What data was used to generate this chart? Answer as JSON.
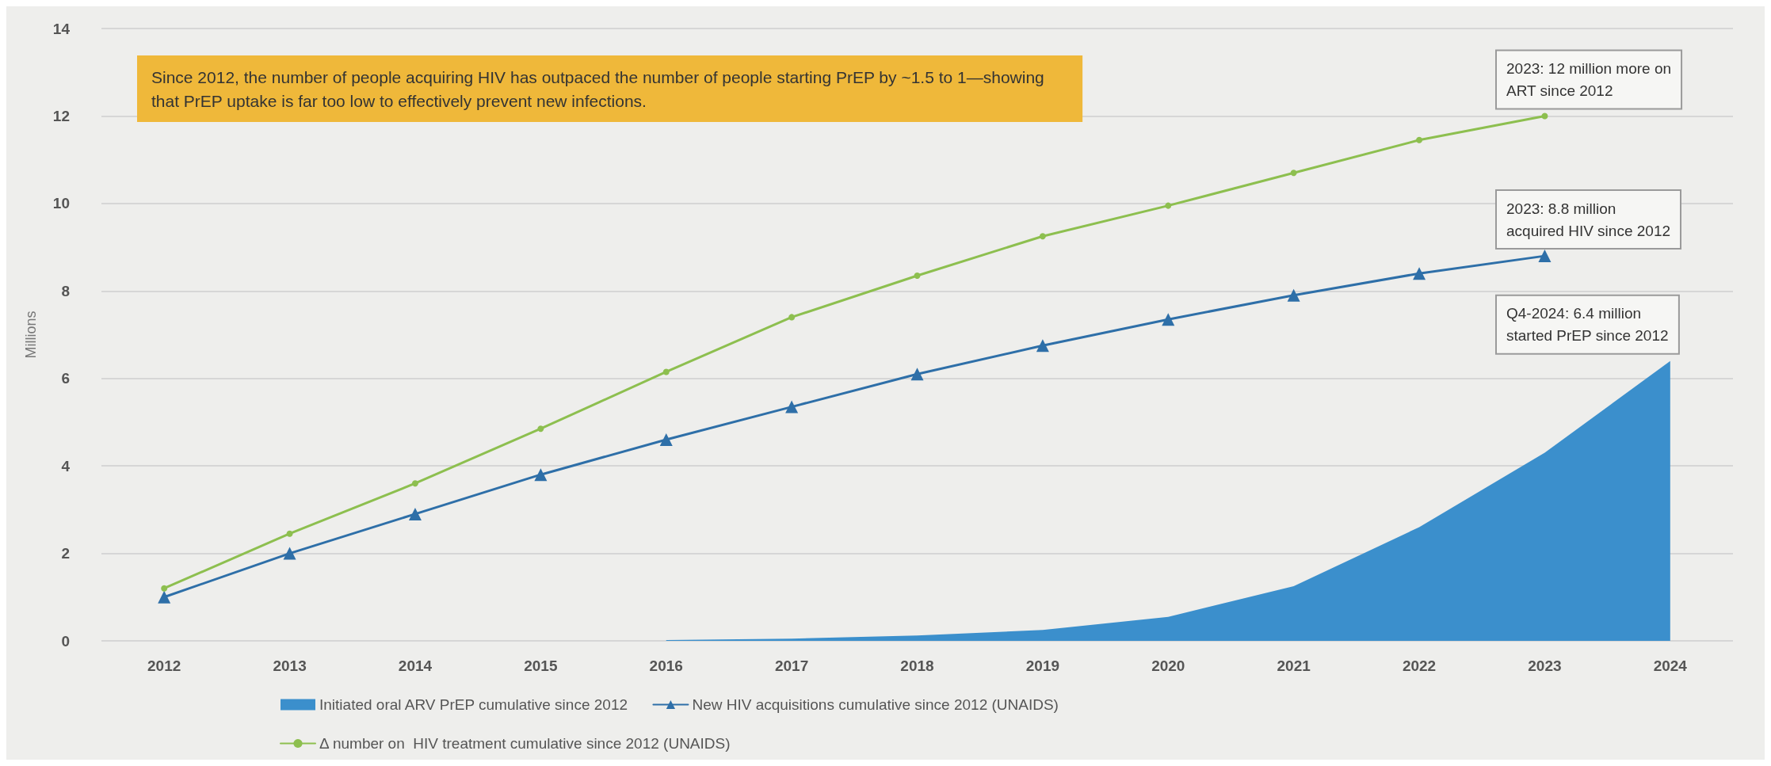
{
  "chart_data": {
    "type": "line",
    "ylabel": "Millions",
    "categories": [
      "2012",
      "2013",
      "2014",
      "2015",
      "2016",
      "2017",
      "2018",
      "2019",
      "2020",
      "2021",
      "2022",
      "2023",
      "2024"
    ],
    "series": [
      {
        "name": "Initiated oral ARV PrEP cumulative since 2012",
        "type": "area",
        "color": "#3b8fcc",
        "values": [
          null,
          null,
          null,
          null,
          0.02,
          0.05,
          0.12,
          0.25,
          0.55,
          1.25,
          2.6,
          4.3,
          6.4
        ]
      },
      {
        "name": "New HIV acquisitions cumulative since 2012 (UNAIDS)",
        "type": "line",
        "color": "#2e6fa8",
        "marker": "triangle",
        "values": [
          1.0,
          2.0,
          2.9,
          3.8,
          4.6,
          5.35,
          6.1,
          6.75,
          7.35,
          7.9,
          8.4,
          8.8,
          null
        ]
      },
      {
        "name": "Δ number on  HIV treatment cumulative since 2012 (UNAIDS)",
        "type": "line",
        "color": "#8dbf4f",
        "marker": "circle",
        "values": [
          1.2,
          2.45,
          3.6,
          4.85,
          6.15,
          7.4,
          8.35,
          9.25,
          9.95,
          10.7,
          11.45,
          12.0,
          null
        ]
      }
    ],
    "ylim": [
      0,
      14
    ],
    "yticks": [
      0,
      2,
      4,
      6,
      8,
      10,
      12,
      14
    ],
    "grid": "y",
    "legend": "bottom",
    "annotations": [
      "Since 2012, the number of people acquiring HIV has outpaced the number of people starting PrEP by ~1.5 to 1—showing\nthat PrEP uptake is far too low to effectively prevent new infections.",
      {
        "text": "2023: 12 million more on\nART since 2012",
        "x": "2023",
        "y": 12
      },
      {
        "text": "2023: 8.8 million\nacquired HIV since 2012",
        "x": "2023",
        "y": 8.8
      },
      {
        "text": "Q4-2024: 6.4 million\nstarted PrEP since 2012",
        "x": "2024",
        "y": 6.4
      }
    ]
  }
}
